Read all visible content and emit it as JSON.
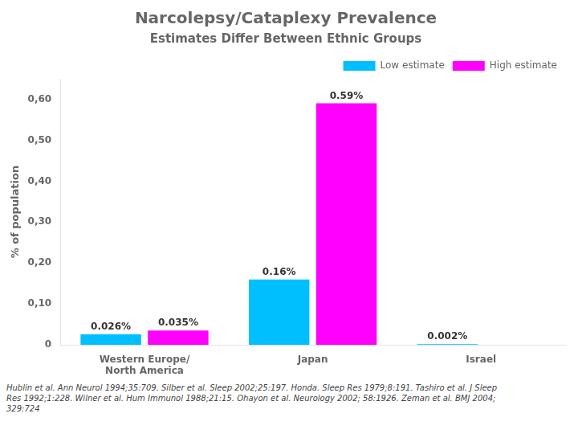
{
  "chart_data": {
    "type": "bar",
    "title": "Narcolepsy/Cataplexy Prevalence",
    "subtitle": "Estimates Differ Between Ethnic Groups",
    "y_label": "% of population",
    "categories": [
      "Western Europe/\nNorth America",
      "Japan",
      "Israel"
    ],
    "series": [
      {
        "name": "Low estimate",
        "color": "#00BFFF",
        "values": [
          0.026,
          0.16,
          0.002
        ],
        "value_labels": [
          "0.026%",
          "0.16%",
          "0.002%"
        ]
      },
      {
        "name": "High estimate",
        "color": "#FF00FF",
        "values": [
          0.035,
          0.59,
          0.0
        ],
        "value_labels": [
          "0.035%",
          "0.59%",
          null
        ]
      }
    ],
    "ylim": [
      0,
      0.65
    ],
    "yticks": [
      0,
      {
        "value": 0.1,
        "label": "0,10"
      },
      {
        "value": 0.2,
        "label": "0,20"
      },
      {
        "value": 0.3,
        "label": "0,30"
      },
      {
        "value": 0.4,
        "label": "0,40"
      },
      {
        "value": 0.5,
        "label": "0,50"
      },
      {
        "value": 0.6,
        "label": "0,60"
      }
    ],
    "grid": false,
    "legend": "upper right",
    "data_labels": true,
    "footnote": "Hublin et al. Ann Neurol 1994;35:709. Silber et al. Sleep 2002;25:197. Honda. Sleep Res 1979;8:191. Tashiro et al. J Sleep\nRes 1992;1:228. Wilner et al. Hum Immunol 1988;21:15. Ohayon et al. Neurology 2002; 58:1926. Zeman et al. BMJ 2004;\n329:724"
  }
}
